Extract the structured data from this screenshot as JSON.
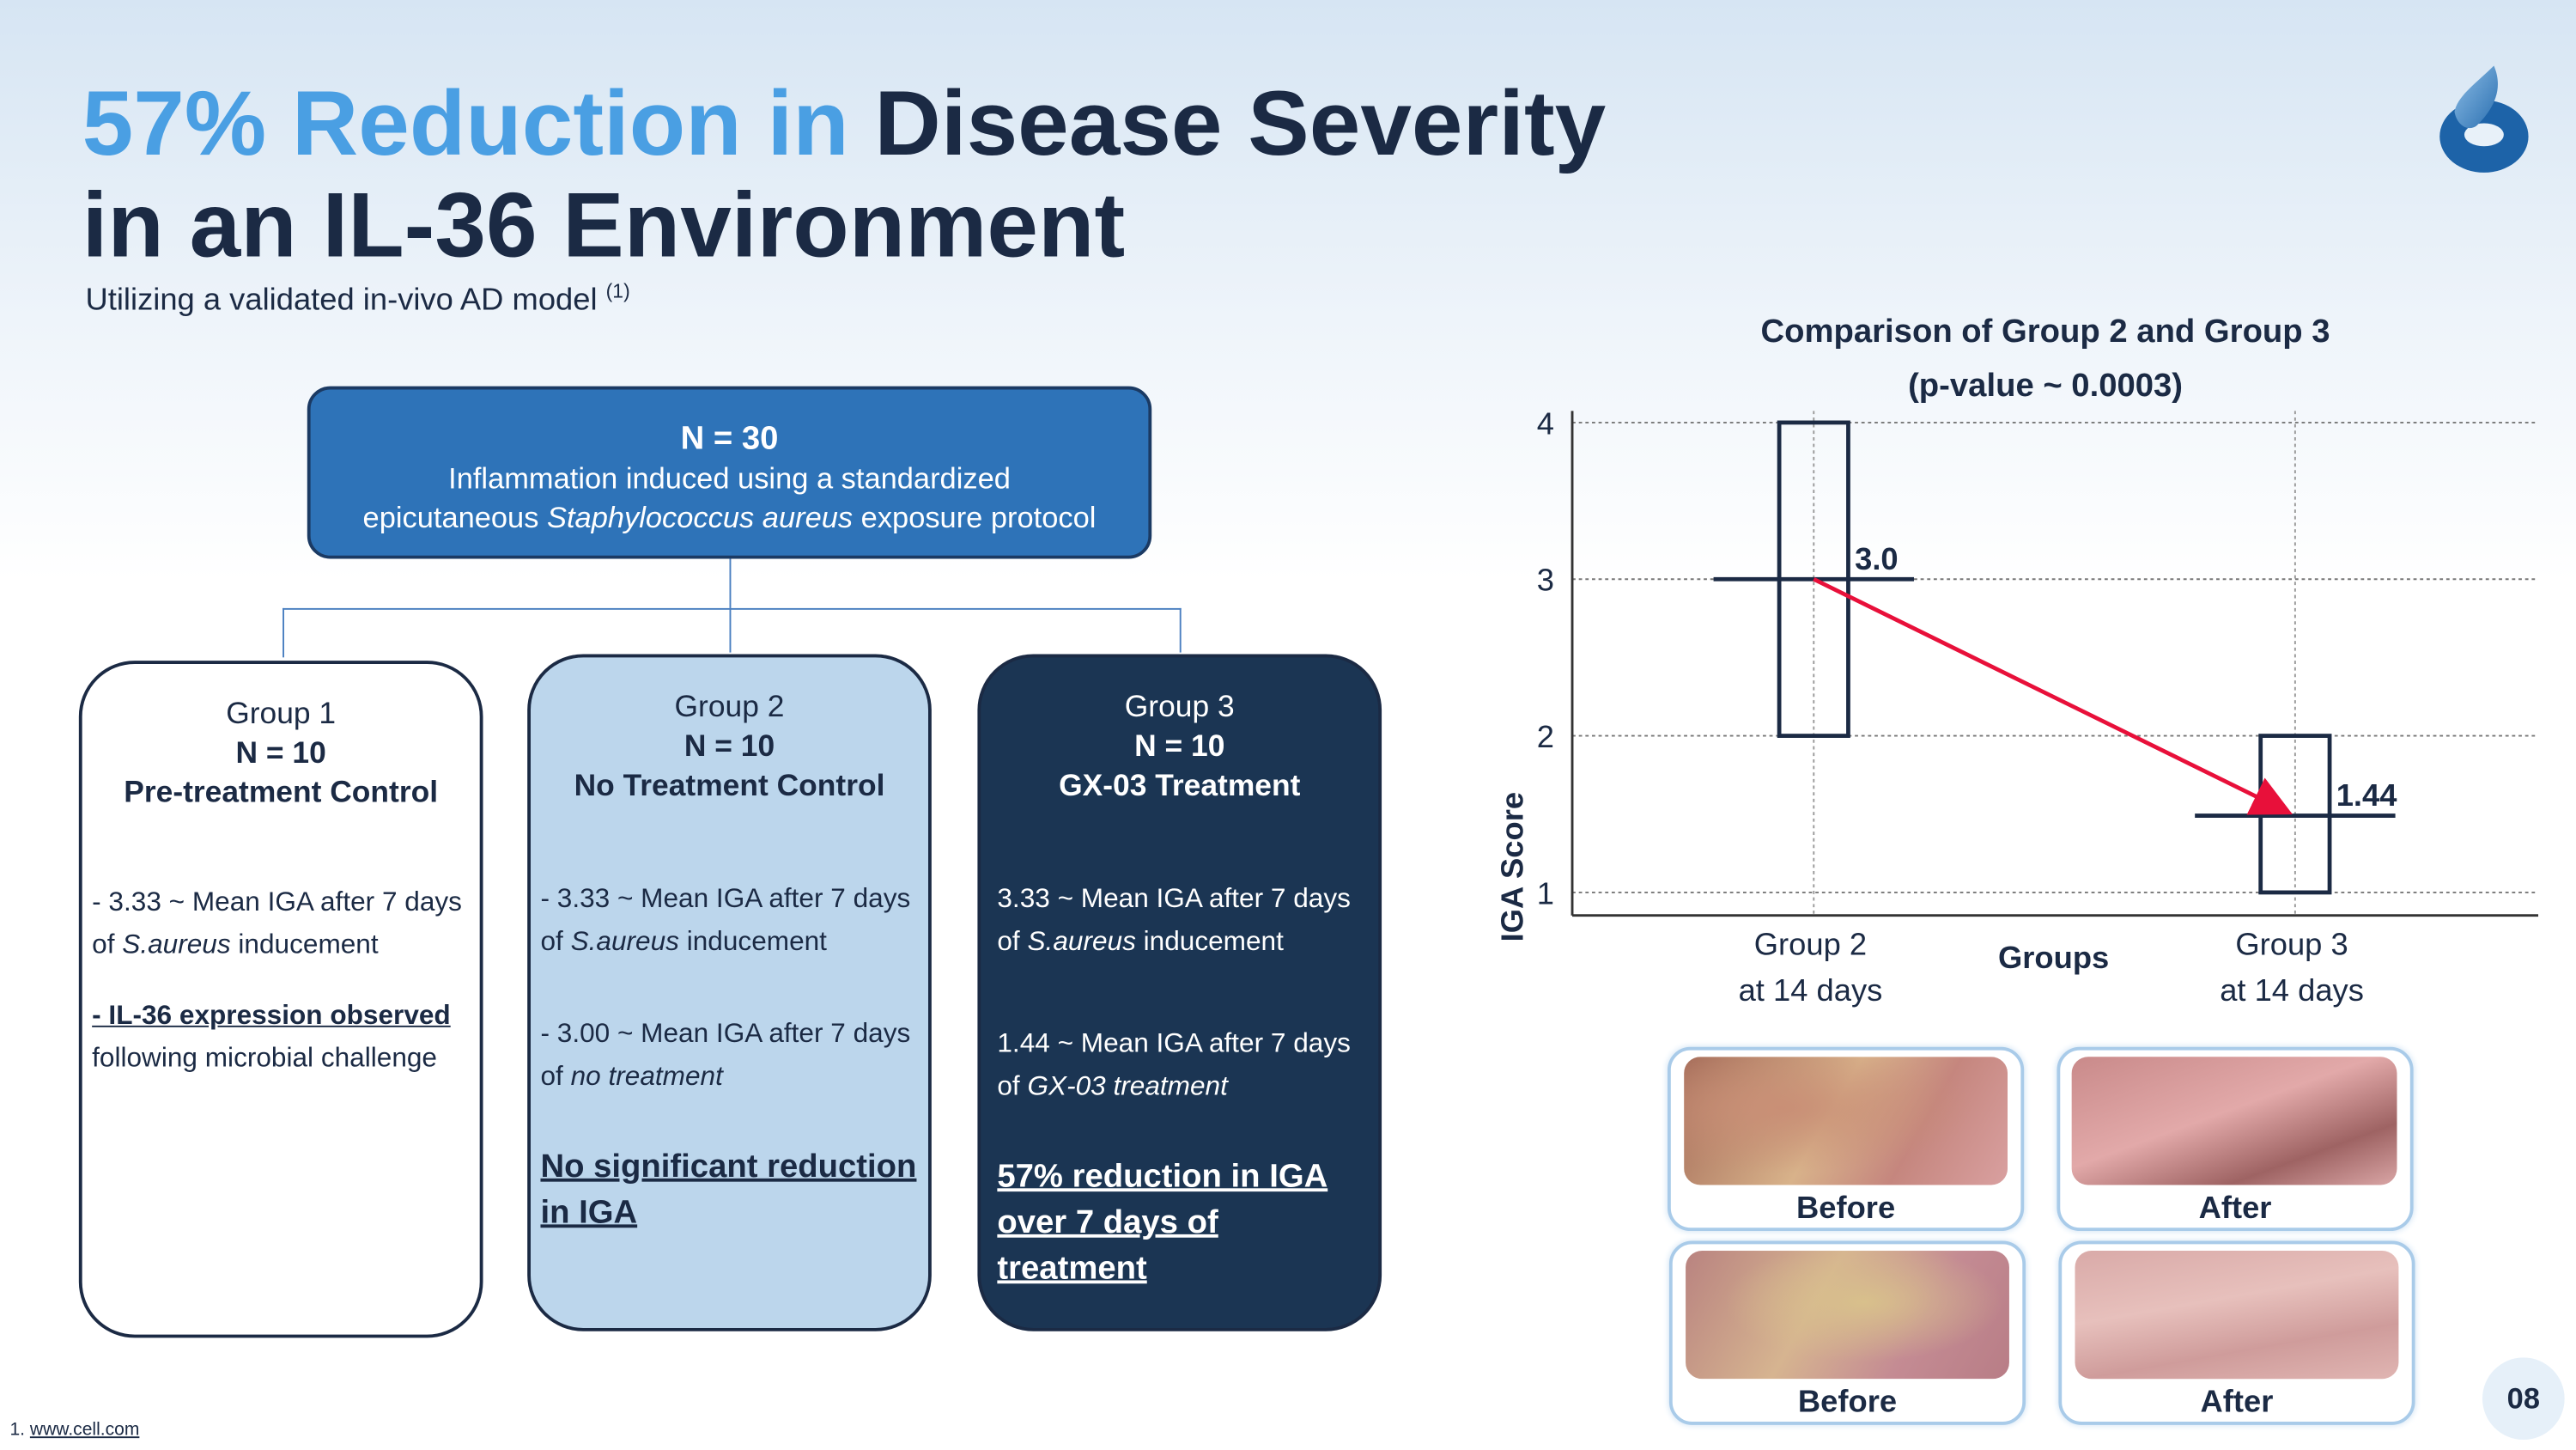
{
  "title": {
    "highlight": "57% Reduction in",
    "rest": " Disease Severity",
    "line2": "in an IL-36 Environment"
  },
  "subtitle": {
    "text": "Utilizing a validated in-vivo AD model ",
    "ref": "(1)"
  },
  "top_box": {
    "n": "N = 30",
    "line1": "Inflammation induced using a standardized",
    "line2_pre": "epicutaneous ",
    "line2_italic": "Staphylococcus aureus",
    "line2_post": " exposure protocol"
  },
  "groups": [
    {
      "name": "Group 1",
      "n": "N = 10",
      "title": "Pre-treatment Control",
      "p1_pre": "- 3.33 ~ Mean IGA after 7 days of ",
      "p1_it": "S.aureus",
      "p1_post": " inducement",
      "p2_u": "- IL-36 expression observed",
      "p2_post": "following microbial challenge"
    },
    {
      "name": "Group 2",
      "n": "N = 10",
      "title": "No Treatment Control",
      "p1_pre": "- 3.33 ~ Mean IGA after 7 days of ",
      "p1_it": "S.aureus",
      "p1_post": " inducement",
      "p2_pre": "- 3.00 ~ Mean IGA after 7 days of ",
      "p2_it": "no treatment",
      "conclusion": "No significant reduction in IGA"
    },
    {
      "name": "Group 3",
      "n": "N = 10",
      "title": "GX-03 Treatment",
      "p1_pre": "3.33 ~ Mean IGA after 7 days of ",
      "p1_it": "S.aureus",
      "p1_post": " inducement",
      "p2_pre": "1.44 ~ Mean IGA after 7 days of ",
      "p2_it": "GX-03 treatment",
      "conclusion": "57% reduction in IGA over 7 days of treatment"
    }
  ],
  "chart_data": {
    "type": "box",
    "title": "Comparison of Group 2 and Group 3",
    "subtitle": "(p-value ~ 0.0003)",
    "xlabel": "Groups",
    "ylabel": "IGA Score",
    "ylim": [
      1,
      4
    ],
    "yticks": [
      "1",
      "2",
      "3",
      "4"
    ],
    "categories": [
      {
        "line1": "Group 2",
        "line2": "at 14 days"
      },
      {
        "line1": "Group 3",
        "line2": "at 14 days"
      }
    ],
    "boxes": [
      {
        "low": 2,
        "high": 4,
        "mean": 3.0,
        "label": "3.0"
      },
      {
        "low": 1,
        "high": 2,
        "mean": 1.44,
        "label": "1.44"
      }
    ],
    "grid": true,
    "arrow_color": "#e8103a"
  },
  "photos": [
    {
      "label": "Before"
    },
    {
      "label": "After"
    },
    {
      "label": "Before"
    },
    {
      "label": "After"
    }
  ],
  "page_number": "08",
  "footnote": {
    "num": "1. ",
    "link": "www.cell.com"
  }
}
